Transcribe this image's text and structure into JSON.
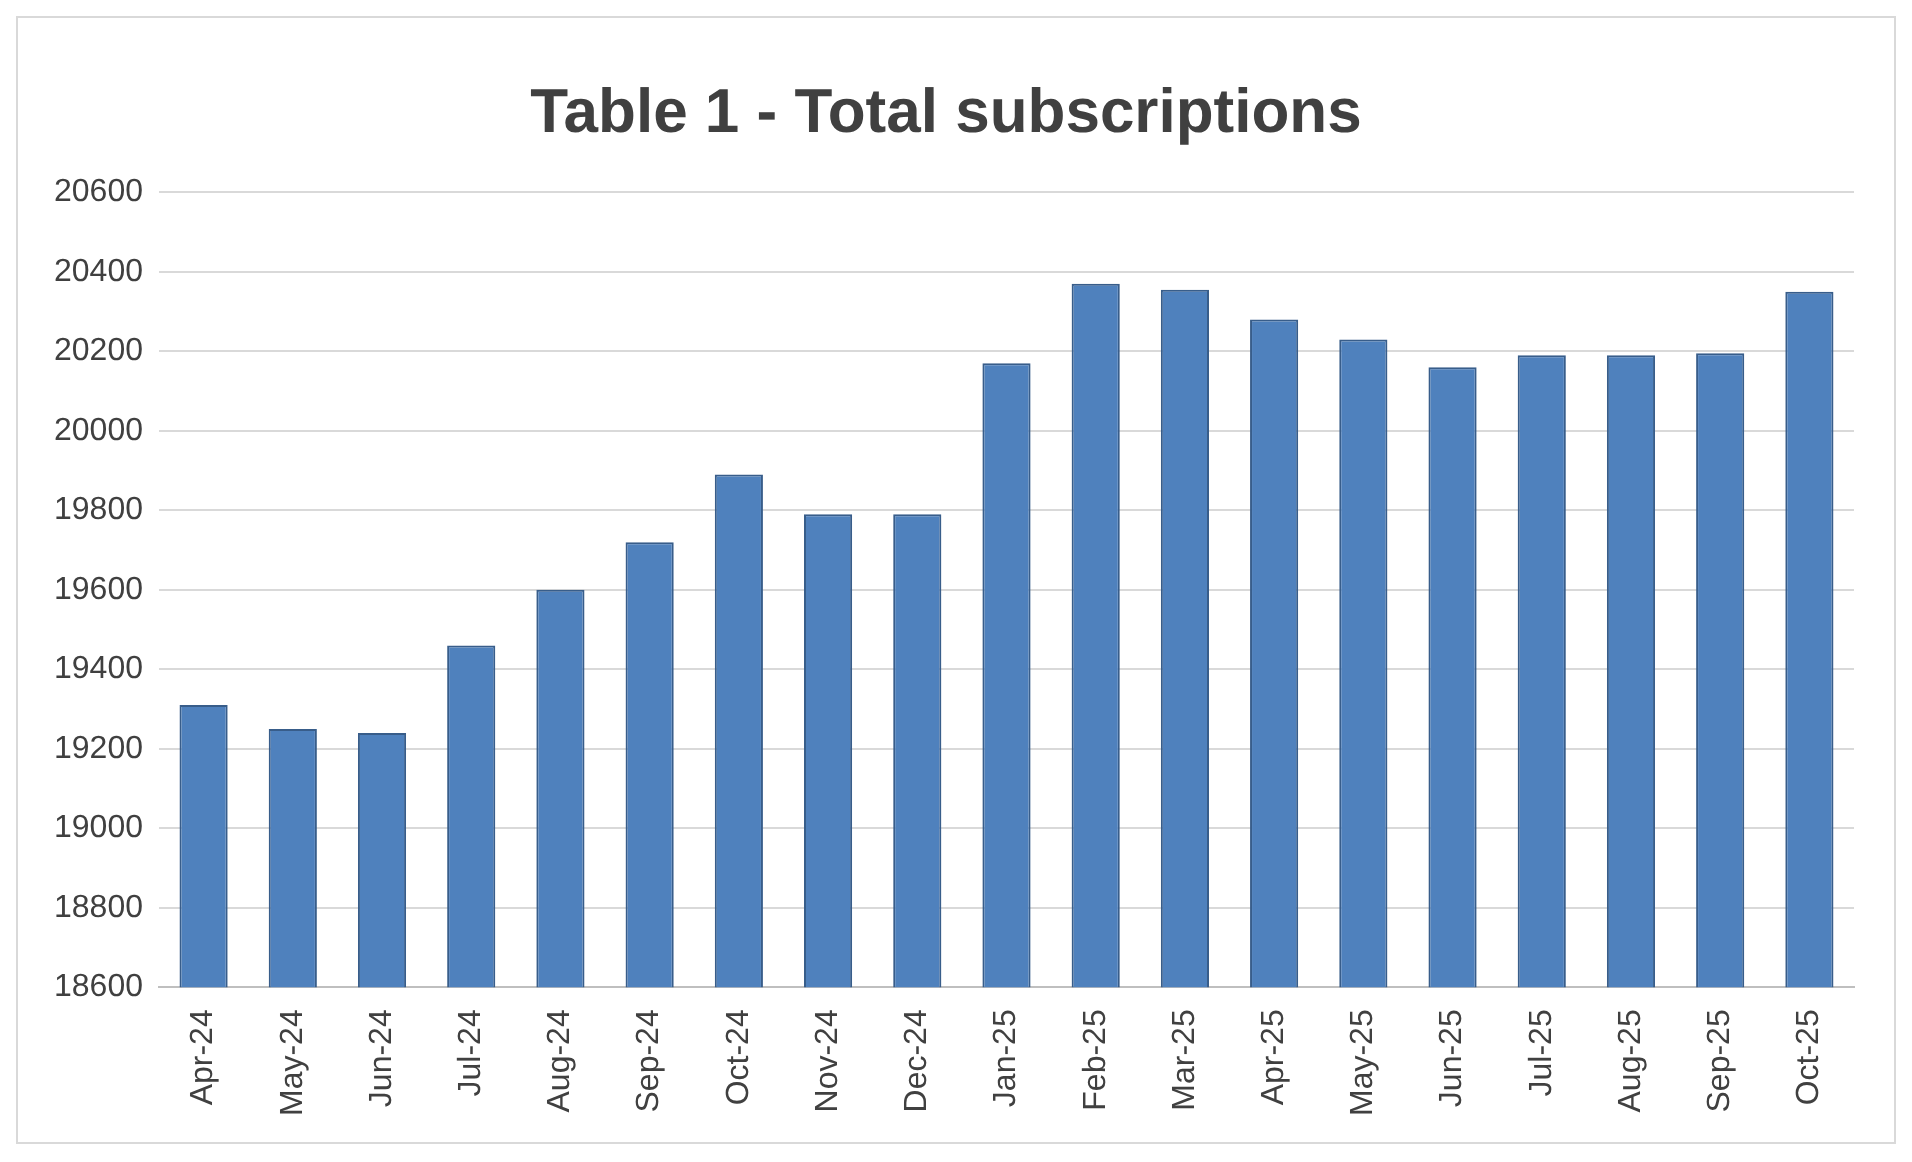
{
  "chart_data": {
    "type": "bar",
    "title": "Table 1 - Total subscriptions",
    "categories": [
      "Apr-24",
      "May-24",
      "Jun-24",
      "Jul-24",
      "Aug-24",
      "Sep-24",
      "Oct-24",
      "Nov-24",
      "Dec-24",
      "Jan-25",
      "Feb-25",
      "Mar-25",
      "Apr-25",
      "May-25",
      "Jun-25",
      "Jul-25",
      "Aug-25",
      "Sep-25",
      "Oct-25"
    ],
    "values": [
      19310,
      19250,
      19240,
      19460,
      19600,
      19720,
      19890,
      19790,
      19790,
      20170,
      20370,
      20355,
      20280,
      20230,
      20160,
      20190,
      20190,
      20195,
      20350
    ],
    "color": "#4f81bd",
    "ylim": [
      18600,
      20600
    ],
    "yticks": [
      18600,
      18800,
      19000,
      19200,
      19400,
      19600,
      19800,
      20000,
      20200,
      20400,
      20600
    ],
    "grid": "y"
  }
}
